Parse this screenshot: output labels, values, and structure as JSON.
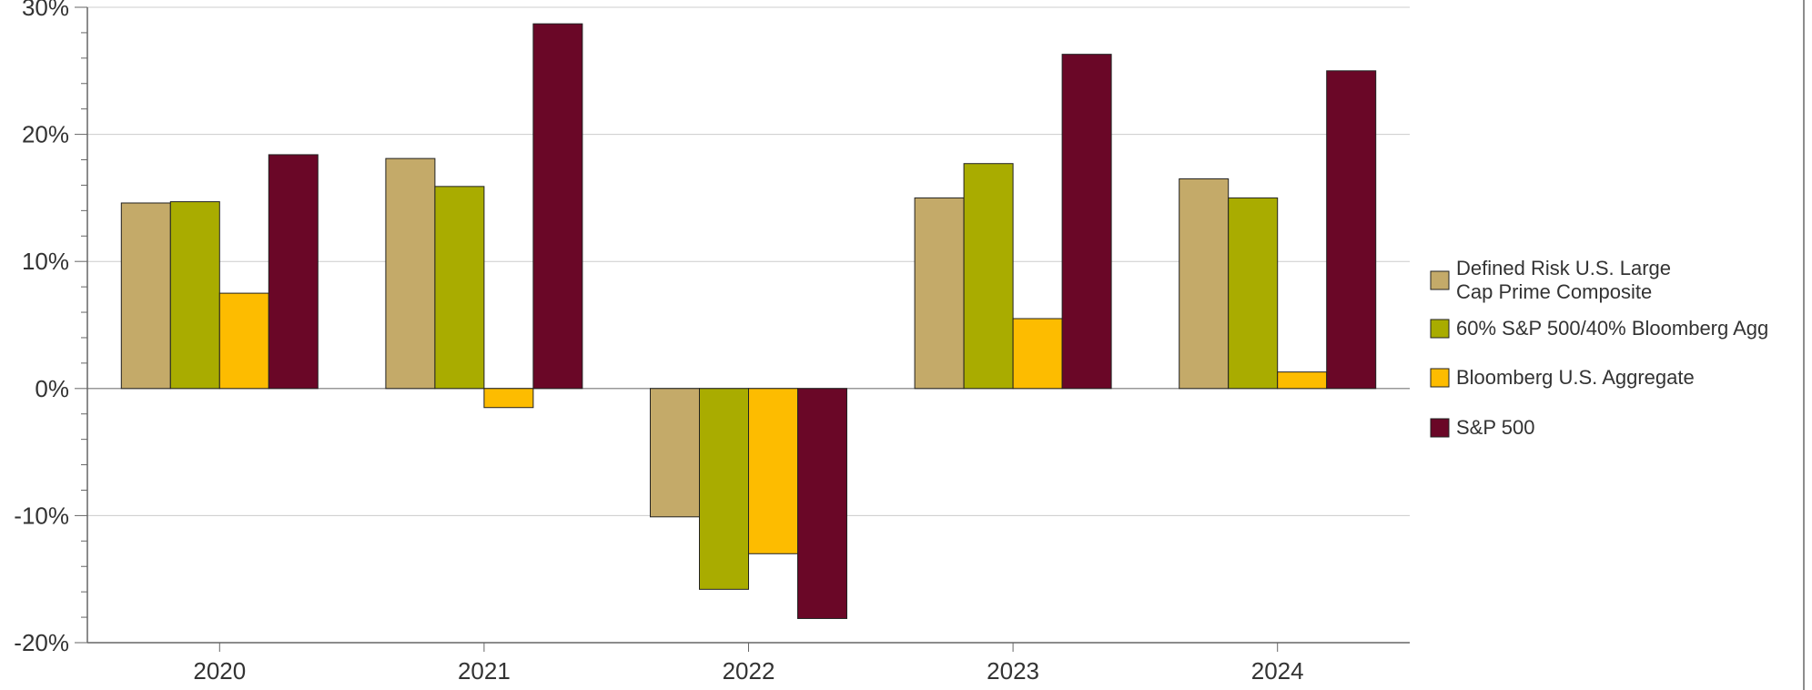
{
  "chart_data": {
    "type": "bar",
    "categories": [
      "2020",
      "2021",
      "2022",
      "2023",
      "2024"
    ],
    "series": [
      {
        "name": "Defined Risk U.S. Large Cap Prime Composite",
        "legend_lines": [
          "Defined Risk U.S. Large",
          "Cap Prime Composite"
        ],
        "color": "#C4AA69",
        "values": [
          14.6,
          18.1,
          -10.1,
          15.0,
          16.5
        ]
      },
      {
        "name": "60% S&P 500/40% Bloomberg Agg",
        "legend_lines": [
          "60% S&P 500/40% Bloomberg Agg"
        ],
        "color": "#A9AC00",
        "values": [
          14.7,
          15.9,
          -15.8,
          17.7,
          15.0
        ]
      },
      {
        "name": "Bloomberg U.S. Aggregate",
        "legend_lines": [
          "Bloomberg U.S. Aggregate"
        ],
        "color": "#FDBC00",
        "values": [
          7.5,
          -1.5,
          -13.0,
          5.5,
          1.3
        ]
      },
      {
        "name": "S&P 500",
        "legend_lines": [
          "S&P 500"
        ],
        "color": "#6A0727",
        "values": [
          18.4,
          28.7,
          -18.1,
          26.3,
          25.0
        ]
      }
    ],
    "ylim": [
      -20,
      30
    ],
    "yticks": [
      -20,
      -10,
      0,
      10,
      20,
      30
    ],
    "ytick_labels": [
      "-20%",
      "-10%",
      "0%",
      "10%",
      "20%",
      "30%"
    ],
    "ylabel": "",
    "xlabel": "",
    "title": "",
    "grid": true,
    "legend_position": "right"
  }
}
